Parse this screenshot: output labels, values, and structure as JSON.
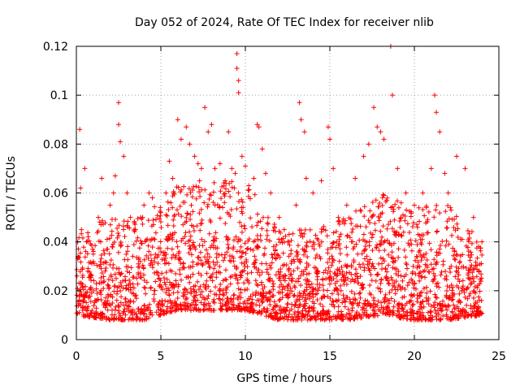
{
  "chart_data": {
    "type": "scatter",
    "title": "Day 052 of 2024, Rate Of TEC Index for receiver nlib",
    "xlabel": "GPS time / hours",
    "ylabel": "ROTI / TECUs",
    "xlim": [
      0,
      25
    ],
    "ylim": [
      0,
      0.12
    ],
    "xticks": [
      0,
      5,
      10,
      15,
      20,
      25
    ],
    "xtick_labels": [
      "0",
      "5",
      "10",
      "15",
      "20",
      "25"
    ],
    "yticks": [
      0,
      0.02,
      0.04,
      0.06,
      0.08,
      0.1,
      0.12
    ],
    "ytick_labels": [
      "0",
      "0.02",
      "0.04",
      "0.06",
      "0.08",
      "0.1",
      "0.12"
    ],
    "grid": true,
    "marker": "+",
    "color": "#ff0000",
    "series": [
      {
        "name": "ROTI",
        "points": [
          [
            0.2,
            0.086
          ],
          [
            0.25,
            0.062
          ],
          [
            0.3,
            0.045
          ],
          [
            0.5,
            0.07
          ],
          [
            0.6,
            0.04
          ],
          [
            1.0,
            0.035
          ],
          [
            1.3,
            0.05
          ],
          [
            1.5,
            0.066
          ],
          [
            2.0,
            0.055
          ],
          [
            2.2,
            0.06
          ],
          [
            2.3,
            0.067
          ],
          [
            2.5,
            0.097
          ],
          [
            2.5,
            0.088
          ],
          [
            2.6,
            0.081
          ],
          [
            2.8,
            0.075
          ],
          [
            3.0,
            0.06
          ],
          [
            3.2,
            0.05
          ],
          [
            3.5,
            0.045
          ],
          [
            3.8,
            0.05
          ],
          [
            4.0,
            0.055
          ],
          [
            4.3,
            0.06
          ],
          [
            4.5,
            0.058
          ],
          [
            5.0,
            0.052
          ],
          [
            5.3,
            0.06
          ],
          [
            5.5,
            0.073
          ],
          [
            5.7,
            0.066
          ],
          [
            6.0,
            0.09
          ],
          [
            6.2,
            0.082
          ],
          [
            6.5,
            0.087
          ],
          [
            6.7,
            0.08
          ],
          [
            7.0,
            0.075
          ],
          [
            7.2,
            0.072
          ],
          [
            7.4,
            0.07
          ],
          [
            7.6,
            0.095
          ],
          [
            7.8,
            0.085
          ],
          [
            8.0,
            0.088
          ],
          [
            8.2,
            0.07
          ],
          [
            8.5,
            0.072
          ],
          [
            8.8,
            0.065
          ],
          [
            9.0,
            0.085
          ],
          [
            9.2,
            0.07
          ],
          [
            9.4,
            0.068
          ],
          [
            9.5,
            0.117
          ],
          [
            9.5,
            0.111
          ],
          [
            9.6,
            0.106
          ],
          [
            9.6,
            0.101
          ],
          [
            9.8,
            0.075
          ],
          [
            10.0,
            0.071
          ],
          [
            10.2,
            0.063
          ],
          [
            10.5,
            0.066
          ],
          [
            10.7,
            0.088
          ],
          [
            10.8,
            0.087
          ],
          [
            11.0,
            0.078
          ],
          [
            11.2,
            0.068
          ],
          [
            11.5,
            0.06
          ],
          [
            12.0,
            0.05
          ],
          [
            12.3,
            0.045
          ],
          [
            12.5,
            0.04
          ],
          [
            13.0,
            0.055
          ],
          [
            13.2,
            0.097
          ],
          [
            13.3,
            0.09
          ],
          [
            13.5,
            0.085
          ],
          [
            13.6,
            0.066
          ],
          [
            14.0,
            0.06
          ],
          [
            14.5,
            0.065
          ],
          [
            14.9,
            0.087
          ],
          [
            15.0,
            0.082
          ],
          [
            15.2,
            0.07
          ],
          [
            15.5,
            0.05
          ],
          [
            16.0,
            0.055
          ],
          [
            16.5,
            0.066
          ],
          [
            17.0,
            0.075
          ],
          [
            17.3,
            0.08
          ],
          [
            17.6,
            0.095
          ],
          [
            17.8,
            0.087
          ],
          [
            18.0,
            0.085
          ],
          [
            18.2,
            0.082
          ],
          [
            18.6,
            0.12
          ],
          [
            18.7,
            0.1
          ],
          [
            19.0,
            0.07
          ],
          [
            19.5,
            0.06
          ],
          [
            20.0,
            0.055
          ],
          [
            20.5,
            0.06
          ],
          [
            21.0,
            0.07
          ],
          [
            21.2,
            0.1
          ],
          [
            21.3,
            0.093
          ],
          [
            21.5,
            0.085
          ],
          [
            21.8,
            0.068
          ],
          [
            22.0,
            0.06
          ],
          [
            22.5,
            0.075
          ],
          [
            23.0,
            0.07
          ],
          [
            23.5,
            0.05
          ],
          [
            24.0,
            0.04
          ]
        ],
        "envelope": {
          "x_range": [
            0,
            24
          ],
          "description_values_hours": [
            0,
            2,
            4,
            6,
            8,
            10,
            12,
            14,
            16,
            18,
            20,
            22,
            24
          ],
          "typical_upper": [
            0.045,
            0.05,
            0.05,
            0.065,
            0.065,
            0.065,
            0.045,
            0.045,
            0.05,
            0.06,
            0.055,
            0.055,
            0.04
          ],
          "typical_lower": [
            0.01,
            0.008,
            0.008,
            0.012,
            0.012,
            0.012,
            0.008,
            0.008,
            0.008,
            0.01,
            0.008,
            0.008,
            0.01
          ]
        }
      }
    ]
  }
}
